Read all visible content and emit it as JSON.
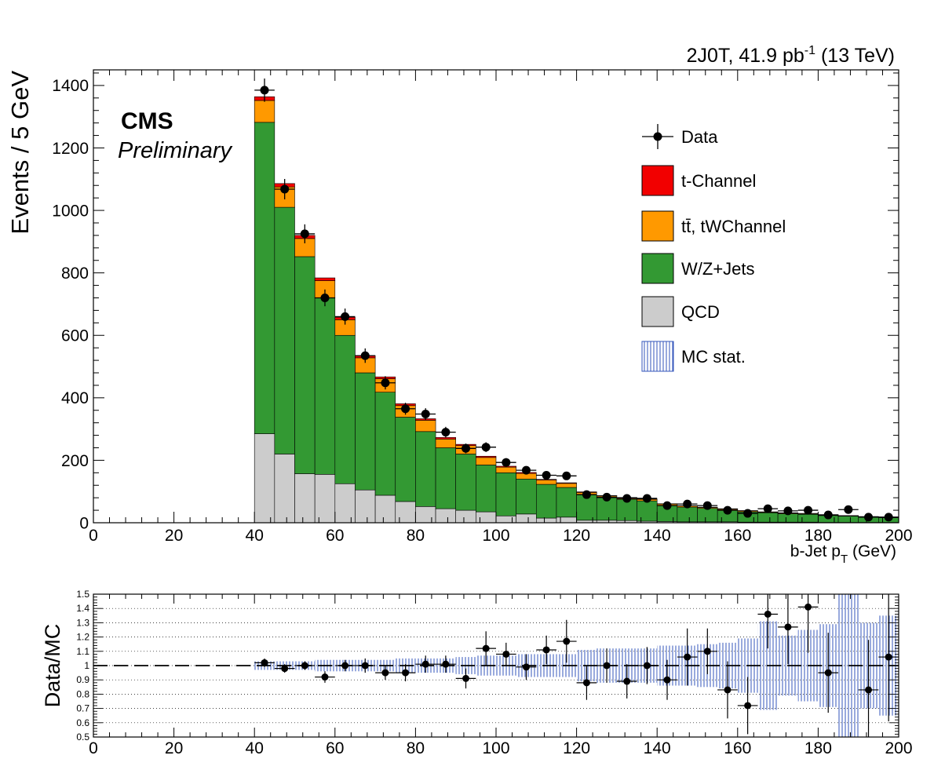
{
  "header": {
    "lumi_prefix": "2J0T, 41.9 pb",
    "lumi_exp": "-1",
    "lumi_suffix": " (13 TeV)"
  },
  "labels": {
    "cms": "CMS",
    "preliminary": "Preliminary"
  },
  "colors": {
    "tchannel": "#f20000",
    "ttbar": "#ff9900",
    "wz": "#339933",
    "qcd": "#cccccc",
    "mcstat": "#3355bb",
    "data": "#000000"
  },
  "legend": [
    {
      "key": "data",
      "label": "Data"
    },
    {
      "key": "tchannel",
      "label": "t-Channel"
    },
    {
      "key": "ttbar",
      "label": "tt̄, tWChannel"
    },
    {
      "key": "wz",
      "label": "W/Z+Jets"
    },
    {
      "key": "qcd",
      "label": "QCD"
    },
    {
      "key": "mcstat",
      "label": "MC stat."
    }
  ],
  "chart_data": [
    {
      "type": "bar",
      "stacked": true,
      "ylabel": "Events / 5 GeV",
      "xlabel": "b-Jet p",
      "xlabel_sub": "T",
      "xlabel_unit": " (GeV)",
      "xlim": [
        0,
        200
      ],
      "ylim": [
        0,
        1450
      ],
      "x_ticks": [
        0,
        20,
        40,
        60,
        80,
        100,
        120,
        140,
        160,
        180,
        200
      ],
      "y_ticks": [
        0,
        200,
        400,
        600,
        800,
        1000,
        1200,
        1400
      ],
      "bin_edges": [
        40,
        45,
        50,
        55,
        60,
        65,
        70,
        75,
        80,
        85,
        90,
        95,
        100,
        105,
        110,
        115,
        120,
        125,
        130,
        135,
        140,
        145,
        150,
        155,
        160,
        165,
        170,
        175,
        180,
        185,
        190,
        195,
        200
      ],
      "series": [
        {
          "key": "qcd",
          "name": "QCD",
          "values": [
            285,
            220,
            157,
            155,
            125,
            105,
            88,
            68,
            52,
            45,
            40,
            35,
            22,
            28,
            15,
            18,
            8,
            8,
            7,
            5,
            4,
            3,
            3,
            3,
            2,
            2,
            2,
            2,
            1,
            1,
            1,
            1
          ]
        },
        {
          "key": "wz",
          "name": "W/Z+Jets",
          "values": [
            997,
            790,
            695,
            565,
            475,
            375,
            330,
            270,
            240,
            195,
            180,
            150,
            138,
            112,
            108,
            95,
            82,
            72,
            68,
            65,
            52,
            47,
            43,
            38,
            33,
            30,
            27,
            25,
            22,
            20,
            17,
            15
          ]
        },
        {
          "key": "ttbar",
          "name": "tt̄, tWChannel",
          "values": [
            70,
            65,
            58,
            55,
            50,
            48,
            43,
            37,
            36,
            28,
            27,
            24,
            18,
            18,
            14,
            13,
            7,
            6,
            5,
            5,
            4,
            4,
            3,
            3,
            3,
            2,
            2,
            2,
            2,
            1,
            1,
            1
          ]
        },
        {
          "key": "tchannel",
          "name": "t-Channel",
          "values": [
            12,
            11,
            10,
            9,
            8,
            7,
            6,
            6,
            5,
            5,
            4,
            4,
            3,
            3,
            2,
            2,
            2,
            1,
            1,
            1,
            1,
            1,
            1,
            1,
            1,
            1,
            1,
            1,
            1,
            1,
            1,
            1
          ]
        }
      ],
      "data": {
        "name": "Data",
        "x": [
          42.5,
          47.5,
          52.5,
          57.5,
          62.5,
          67.5,
          72.5,
          77.5,
          82.5,
          87.5,
          92.5,
          97.5,
          102.5,
          107.5,
          112.5,
          117.5,
          122.5,
          127.5,
          132.5,
          137.5,
          142.5,
          147.5,
          152.5,
          157.5,
          162.5,
          167.5,
          172.5,
          177.5,
          182.5,
          187.5,
          192.5,
          197.5
        ],
        "y": [
          1385,
          1068,
          925,
          720,
          660,
          535,
          448,
          365,
          348,
          290,
          238,
          242,
          193,
          168,
          152,
          150,
          90,
          82,
          78,
          78,
          55,
          60,
          55,
          40,
          30,
          45,
          38,
          40,
          25,
          42,
          18,
          18
        ]
      }
    },
    {
      "type": "scatter",
      "ylabel": "Data/MC",
      "xlim": [
        0,
        200
      ],
      "ylim": [
        0.5,
        1.5
      ],
      "x_ticks": [
        0,
        20,
        40,
        60,
        80,
        100,
        120,
        140,
        160,
        180,
        200
      ],
      "y_ticks": [
        0.5,
        0.6,
        0.7,
        0.8,
        0.9,
        1,
        1.1,
        1.2,
        1.3,
        1.4,
        1.5
      ],
      "y_tick_labels": [
        "0.5",
        "0.6",
        "0.7",
        "0.8",
        "0.9",
        "1",
        "1.1",
        "1.2",
        "1.3",
        "1.4",
        "1.5"
      ],
      "reference_line": 1,
      "x": [
        42.5,
        47.5,
        52.5,
        57.5,
        62.5,
        67.5,
        72.5,
        77.5,
        82.5,
        87.5,
        92.5,
        97.5,
        102.5,
        107.5,
        112.5,
        117.5,
        122.5,
        127.5,
        132.5,
        137.5,
        142.5,
        147.5,
        152.5,
        157.5,
        162.5,
        167.5,
        172.5,
        177.5,
        182.5,
        187.5,
        192.5,
        197.5
      ],
      "y": [
        1.02,
        0.98,
        1.0,
        0.92,
        1.0,
        1.0,
        0.95,
        0.95,
        1.01,
        1.01,
        0.91,
        1.12,
        1.08,
        0.99,
        1.11,
        1.17,
        0.88,
        1.0,
        0.89,
        1.0,
        0.9,
        1.06,
        1.1,
        0.83,
        0.72,
        1.36,
        1.27,
        1.41,
        0.95,
        null,
        0.83,
        1.06
      ],
      "y_err": [
        0.03,
        0.03,
        0.03,
        0.04,
        0.04,
        0.05,
        0.05,
        0.06,
        0.06,
        0.06,
        0.07,
        0.12,
        0.08,
        0.09,
        0.1,
        0.15,
        0.12,
        0.12,
        0.12,
        0.13,
        0.14,
        0.2,
        0.16,
        0.2,
        0.2,
        0.24,
        0.26,
        0.32,
        0.28,
        0.3,
        0.35,
        0.45
      ],
      "mc_stat": [
        0.03,
        0.03,
        0.03,
        0.04,
        0.04,
        0.04,
        0.04,
        0.05,
        0.05,
        0.05,
        0.06,
        0.07,
        0.07,
        0.08,
        0.08,
        0.08,
        0.11,
        0.12,
        0.12,
        0.12,
        0.14,
        0.14,
        0.15,
        0.16,
        0.19,
        0.31,
        0.21,
        0.25,
        0.29,
        0.6,
        0.3,
        0.35
      ]
    }
  ]
}
